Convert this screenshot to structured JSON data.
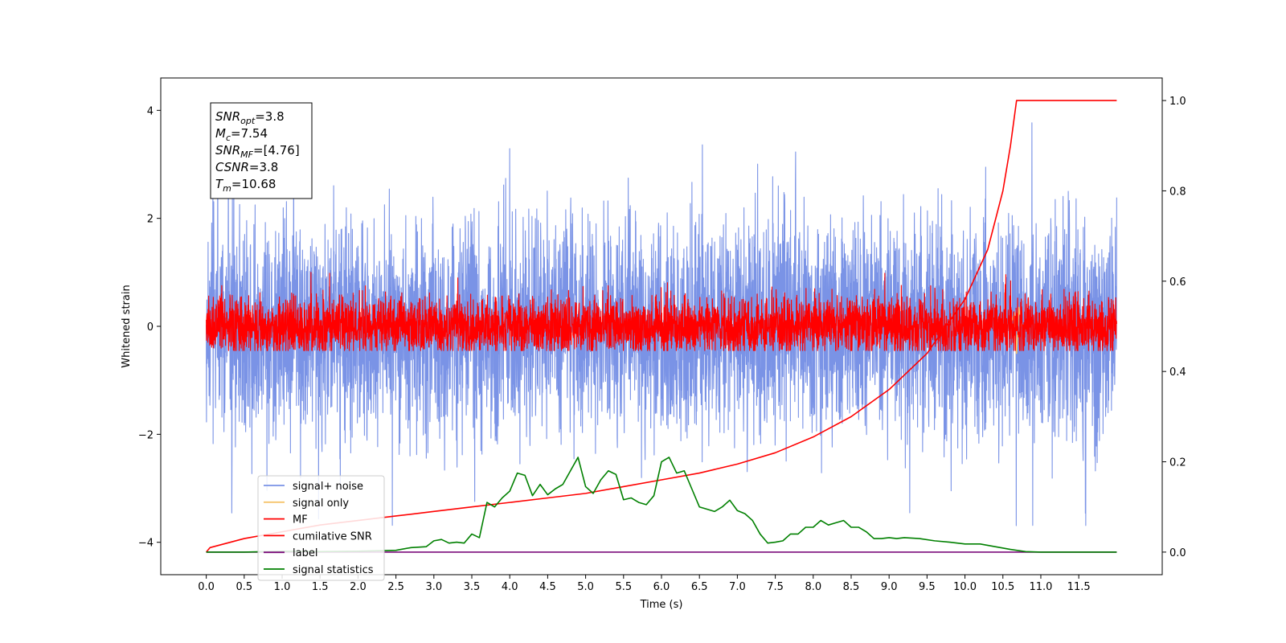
{
  "chart_data": {
    "type": "line",
    "title": "",
    "xlabel": "Time (s)",
    "ylabel": "Whitened strain",
    "y2label": "",
    "xlim": [
      -0.6,
      12.6
    ],
    "ylim": [
      -4.6,
      4.6
    ],
    "y2lim": [
      -0.05,
      1.05
    ],
    "x_ticks": [
      "0.0",
      "0.5",
      "1.0",
      "1.5",
      "2.0",
      "2.5",
      "3.0",
      "3.5",
      "4.0",
      "4.5",
      "5.0",
      "5.5",
      "6.0",
      "6.5",
      "7.0",
      "7.5",
      "8.0",
      "8.5",
      "9.0",
      "9.5",
      "10.0",
      "10.5",
      "11.0",
      "11.5"
    ],
    "y_ticks": [
      "−4",
      "−2",
      "0",
      "2",
      "4"
    ],
    "y2_ticks": [
      "0.0",
      "0.2",
      "0.4",
      "0.6",
      "0.8",
      "1.0"
    ],
    "grid": false,
    "legend": {
      "placement": "lower-left",
      "entries": [
        {
          "label": "signal+ noise",
          "color": "#7a93e6"
        },
        {
          "label": "signal only",
          "color": "#f5c46c"
        },
        {
          "label": "MF",
          "color": "#ff0000"
        },
        {
          "label": "cumilative SNR",
          "color": "#ff0000"
        },
        {
          "label": "label",
          "color": "#7b0d7b"
        },
        {
          "label": "signal statistics",
          "color": "#008000"
        }
      ]
    },
    "stats_box": {
      "lines": [
        {
          "sym": "SNR",
          "sub": "opt",
          "val": "=3.8"
        },
        {
          "sym": "M",
          "sub": "c",
          "val": "=7.54"
        },
        {
          "sym": "SNR",
          "sub": "MF",
          "val": "=[4.76]"
        },
        {
          "sym": "CSNR",
          "sub": "",
          "val": "=3.8"
        },
        {
          "sym": "T",
          "sub": "m",
          "val": "=10.68"
        }
      ]
    },
    "series": [
      {
        "name": "signal+ noise",
        "axis": "left",
        "color": "#7a93e6",
        "kind": "noise",
        "x_range": [
          0,
          12.0
        ],
        "amplitude": 1.0,
        "peak_max": 4.15,
        "peak_min": -3.7
      },
      {
        "name": "signal only",
        "axis": "left",
        "color": "#f5c46c",
        "points": [
          [
            10.6,
            0
          ],
          [
            10.65,
            0.25
          ],
          [
            10.68,
            -0.5
          ],
          [
            10.71,
            0.35
          ],
          [
            10.75,
            0
          ]
        ]
      },
      {
        "name": "MF",
        "axis": "left",
        "color": "#ff0000",
        "kind": "noise",
        "x_range": [
          0,
          12.0
        ],
        "amplitude": 0.27,
        "peak_max": 1.0,
        "peak_min": -0.45
      },
      {
        "name": "cumilative SNR",
        "axis": "right",
        "color": "#ff0000",
        "points": [
          [
            0,
            0.0
          ],
          [
            0.05,
            0.01
          ],
          [
            0.5,
            0.03
          ],
          [
            1.0,
            0.045
          ],
          [
            1.5,
            0.06
          ],
          [
            2.0,
            0.07
          ],
          [
            2.5,
            0.08
          ],
          [
            3.0,
            0.09
          ],
          [
            3.5,
            0.1
          ],
          [
            4.0,
            0.11
          ],
          [
            4.5,
            0.12
          ],
          [
            5.0,
            0.13
          ],
          [
            5.5,
            0.145
          ],
          [
            6.0,
            0.16
          ],
          [
            6.5,
            0.175
          ],
          [
            7.0,
            0.195
          ],
          [
            7.5,
            0.22
          ],
          [
            8.0,
            0.255
          ],
          [
            8.5,
            0.3
          ],
          [
            9.0,
            0.36
          ],
          [
            9.5,
            0.44
          ],
          [
            10.0,
            0.56
          ],
          [
            10.3,
            0.67
          ],
          [
            10.5,
            0.8
          ],
          [
            10.6,
            0.9
          ],
          [
            10.68,
            1.0
          ],
          [
            11.0,
            1.0
          ],
          [
            11.5,
            1.0
          ],
          [
            12.0,
            1.0
          ]
        ]
      },
      {
        "name": "label",
        "axis": "right",
        "color": "#7b0d7b",
        "points": [
          [
            0,
            0.0
          ],
          [
            12.0,
            0.0
          ]
        ]
      },
      {
        "name": "signal statistics",
        "axis": "right",
        "color": "#008000",
        "points": [
          [
            0,
            0.0
          ],
          [
            0.5,
            0.0
          ],
          [
            1.0,
            0.002
          ],
          [
            1.5,
            0.001
          ],
          [
            2.0,
            0.002
          ],
          [
            2.5,
            0.004
          ],
          [
            2.7,
            0.01
          ],
          [
            2.9,
            0.012
          ],
          [
            3.0,
            0.025
          ],
          [
            3.1,
            0.028
          ],
          [
            3.2,
            0.02
          ],
          [
            3.3,
            0.022
          ],
          [
            3.4,
            0.02
          ],
          [
            3.5,
            0.04
          ],
          [
            3.6,
            0.032
          ],
          [
            3.7,
            0.11
          ],
          [
            3.8,
            0.1
          ],
          [
            3.9,
            0.12
          ],
          [
            4.0,
            0.135
          ],
          [
            4.1,
            0.175
          ],
          [
            4.2,
            0.17
          ],
          [
            4.3,
            0.125
          ],
          [
            4.4,
            0.15
          ],
          [
            4.5,
            0.127
          ],
          [
            4.6,
            0.14
          ],
          [
            4.7,
            0.15
          ],
          [
            4.8,
            0.18
          ],
          [
            4.9,
            0.21
          ],
          [
            5.0,
            0.145
          ],
          [
            5.1,
            0.13
          ],
          [
            5.2,
            0.16
          ],
          [
            5.3,
            0.18
          ],
          [
            5.4,
            0.172
          ],
          [
            5.5,
            0.116
          ],
          [
            5.6,
            0.12
          ],
          [
            5.7,
            0.11
          ],
          [
            5.8,
            0.105
          ],
          [
            5.9,
            0.125
          ],
          [
            6.0,
            0.2
          ],
          [
            6.1,
            0.21
          ],
          [
            6.2,
            0.175
          ],
          [
            6.3,
            0.18
          ],
          [
            6.4,
            0.14
          ],
          [
            6.5,
            0.1
          ],
          [
            6.6,
            0.095
          ],
          [
            6.7,
            0.09
          ],
          [
            6.8,
            0.1
          ],
          [
            6.9,
            0.115
          ],
          [
            7.0,
            0.092
          ],
          [
            7.1,
            0.085
          ],
          [
            7.2,
            0.07
          ],
          [
            7.3,
            0.04
          ],
          [
            7.4,
            0.02
          ],
          [
            7.5,
            0.022
          ],
          [
            7.6,
            0.025
          ],
          [
            7.7,
            0.04
          ],
          [
            7.8,
            0.04
          ],
          [
            7.9,
            0.055
          ],
          [
            8.0,
            0.055
          ],
          [
            8.1,
            0.07
          ],
          [
            8.2,
            0.06
          ],
          [
            8.3,
            0.065
          ],
          [
            8.4,
            0.07
          ],
          [
            8.5,
            0.055
          ],
          [
            8.6,
            0.055
          ],
          [
            8.7,
            0.045
          ],
          [
            8.8,
            0.03
          ],
          [
            8.9,
            0.03
          ],
          [
            9.0,
            0.032
          ],
          [
            9.1,
            0.03
          ],
          [
            9.2,
            0.032
          ],
          [
            9.4,
            0.03
          ],
          [
            9.6,
            0.025
          ],
          [
            9.8,
            0.022
          ],
          [
            10.0,
            0.018
          ],
          [
            10.2,
            0.018
          ],
          [
            10.4,
            0.012
          ],
          [
            10.6,
            0.006
          ],
          [
            10.8,
            0.001
          ],
          [
            11.0,
            0.0
          ],
          [
            12.0,
            0.0
          ]
        ]
      }
    ]
  }
}
